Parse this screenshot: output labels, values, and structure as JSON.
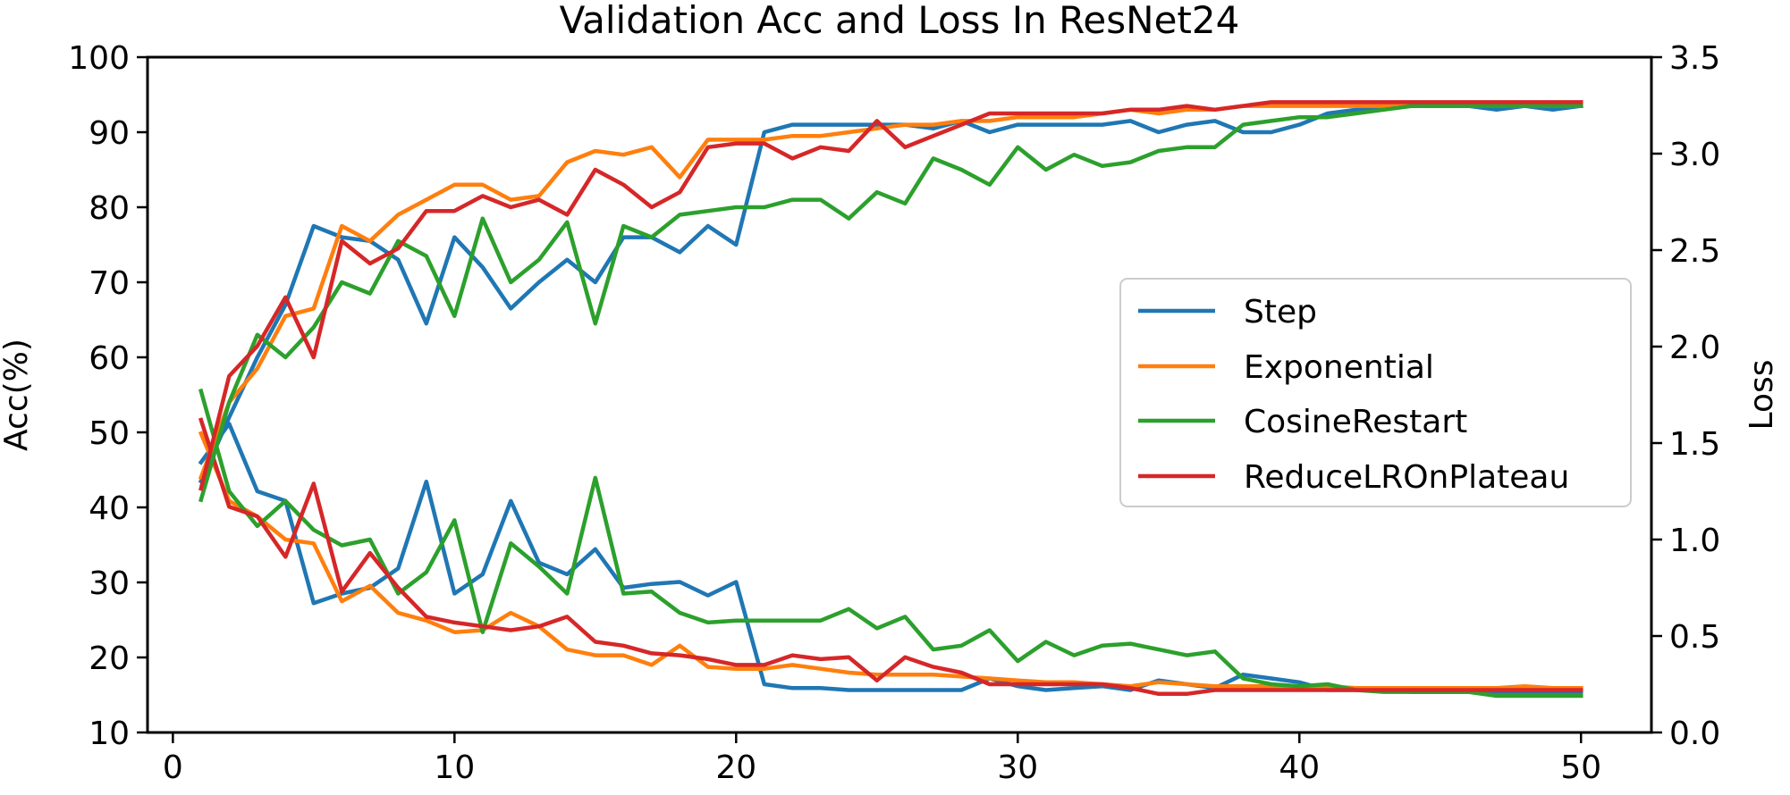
{
  "chart_data": {
    "type": "line",
    "title": "Validation Acc and Loss In ResNet24",
    "xlabel": "",
    "ylabel": "Acc(%)",
    "y2label": "Loss",
    "xlim": [
      -0.9,
      52.5
    ],
    "ylim": [
      10,
      100
    ],
    "y2lim": [
      0,
      3.5
    ],
    "x_ticks": [
      0,
      10,
      20,
      30,
      40,
      50
    ],
    "y_ticks": [
      10,
      20,
      30,
      40,
      50,
      60,
      70,
      80,
      90,
      100
    ],
    "y2_ticks": [
      "0.0",
      "0.5",
      "1.0",
      "1.5",
      "2.0",
      "2.5",
      "3.0",
      "3.5"
    ],
    "grid": false,
    "legend_position": "center-right",
    "x": [
      1,
      2,
      3,
      4,
      5,
      6,
      7,
      8,
      9,
      10,
      11,
      12,
      13,
      14,
      15,
      16,
      17,
      18,
      19,
      20,
      21,
      22,
      23,
      24,
      25,
      26,
      27,
      28,
      29,
      30,
      31,
      32,
      33,
      34,
      35,
      36,
      37,
      38,
      39,
      40,
      41,
      42,
      43,
      44,
      45,
      46,
      47,
      48,
      49,
      50
    ],
    "series": [
      {
        "name": "Step",
        "color": "#1f77b4",
        "acc": [
          43.5,
          52.0,
          60.0,
          67.0,
          77.5,
          76.0,
          75.5,
          73.0,
          64.5,
          76.0,
          72.0,
          66.5,
          70.0,
          73.0,
          70.0,
          76.0,
          76.0,
          74.0,
          77.5,
          75.0,
          90.0,
          91.0,
          91.0,
          91.0,
          91.0,
          91.0,
          90.5,
          91.5,
          90.0,
          91.0,
          91.0,
          91.0,
          91.0,
          91.5,
          90.0,
          91.0,
          91.5,
          90.0,
          90.0,
          91.0,
          92.5,
          93.0,
          93.5,
          93.5,
          93.5,
          93.5,
          93.0,
          93.5,
          93.0,
          93.5
        ],
        "loss": [
          1.4,
          1.6,
          1.25,
          1.2,
          0.67,
          0.72,
          0.75,
          0.85,
          1.3,
          0.72,
          0.82,
          1.2,
          0.88,
          0.82,
          0.95,
          0.75,
          0.77,
          0.78,
          0.71,
          0.78,
          0.25,
          0.23,
          0.23,
          0.22,
          0.22,
          0.22,
          0.22,
          0.22,
          0.28,
          0.24,
          0.22,
          0.23,
          0.24,
          0.22,
          0.27,
          0.25,
          0.23,
          0.3,
          0.28,
          0.26,
          0.22,
          0.22,
          0.22,
          0.21,
          0.21,
          0.21,
          0.21,
          0.21,
          0.21,
          0.21
        ]
      },
      {
        "name": "Exponential",
        "color": "#ff7f0e",
        "acc": [
          44.0,
          54.0,
          58.5,
          65.5,
          66.5,
          77.5,
          75.5,
          79.0,
          81.0,
          83.0,
          83.0,
          81.0,
          81.5,
          86.0,
          87.5,
          87.0,
          88.0,
          84.0,
          89.0,
          89.0,
          89.0,
          89.5,
          89.5,
          90.0,
          90.5,
          91.0,
          91.0,
          91.5,
          91.5,
          92.0,
          92.0,
          92.0,
          92.5,
          93.0,
          92.5,
          93.0,
          93.0,
          93.5,
          93.5,
          93.5,
          93.5,
          93.5,
          93.5,
          93.5,
          93.5,
          93.5,
          93.5,
          93.5,
          93.5,
          93.5
        ]
      },
      {
        "name": "CosineRestart",
        "color": "#2ca02c",
        "acc": [
          41.0,
          54.0,
          63.0,
          60.0,
          64.0,
          70.0,
          68.5,
          75.5,
          73.5,
          65.5,
          78.5,
          70.0,
          73.0,
          78.0,
          64.5,
          77.5,
          76.0,
          79.0,
          79.5,
          80.0,
          80.0,
          81.0,
          81.0,
          78.5,
          82.0,
          80.5,
          86.5,
          85.0,
          83.0,
          88.0,
          85.0,
          87.0,
          85.5,
          86.0,
          87.5,
          88.0,
          88.0,
          91.0,
          91.5,
          92.0,
          92.0,
          92.5,
          93.0,
          93.5,
          93.5,
          93.5,
          93.5,
          93.5,
          93.5,
          93.5
        ],
        "loss": [
          1.77,
          1.25,
          1.07,
          1.2,
          1.05,
          0.97,
          1.0,
          0.72,
          0.83,
          1.1,
          0.52,
          0.98,
          0.86,
          0.72,
          1.32,
          0.72,
          0.73,
          0.62,
          0.57,
          0.58,
          0.58,
          0.58,
          0.58,
          0.64,
          0.54,
          0.6,
          0.43,
          0.45,
          0.53,
          0.37,
          0.47,
          0.4,
          0.45,
          0.46,
          0.43,
          0.4,
          0.42,
          0.28,
          0.25,
          0.24,
          0.25,
          0.22,
          0.21,
          0.21,
          0.21,
          0.21,
          0.19,
          0.19,
          0.19,
          0.19
        ]
      },
      {
        "name": "ReduceLROnPlateau",
        "color": "#d62728",
        "acc": [
          42.5,
          57.5,
          61.5,
          68.0,
          60.0,
          75.5,
          72.5,
          74.5,
          79.5,
          79.5,
          81.5,
          80.0,
          81.0,
          79.0,
          85.0,
          83.0,
          80.0,
          82.0,
          88.0,
          88.5,
          88.5,
          86.5,
          88.0,
          87.5,
          91.5,
          88.0,
          89.5,
          91.0,
          92.5,
          92.5,
          92.5,
          92.5,
          92.5,
          93.0,
          93.0,
          93.5,
          93.0,
          93.5,
          94.0,
          94.0,
          94.0,
          94.0,
          94.0,
          94.0,
          94.0,
          94.0,
          94.0,
          94.0,
          94.0,
          94.0
        ]
      }
    ],
    "exponential_loss": [
      1.55,
      1.2,
      1.12,
      1.0,
      0.98,
      0.68,
      0.76,
      0.62,
      0.58,
      0.52,
      0.53,
      0.62,
      0.55,
      0.43,
      0.4,
      0.4,
      0.35,
      0.45,
      0.34,
      0.33,
      0.33,
      0.35,
      0.33,
      0.31,
      0.3,
      0.3,
      0.3,
      0.29,
      0.28,
      0.27,
      0.26,
      0.26,
      0.25,
      0.24,
      0.26,
      0.25,
      0.24,
      0.24,
      0.24,
      0.24,
      0.24,
      0.23,
      0.23,
      0.23,
      0.23,
      0.23,
      0.23,
      0.24,
      0.23,
      0.23
    ],
    "reducelr_loss": [
      1.62,
      1.17,
      1.12,
      0.91,
      1.29,
      0.73,
      0.93,
      0.75,
      0.6,
      0.57,
      0.55,
      0.53,
      0.55,
      0.6,
      0.47,
      0.45,
      0.41,
      0.4,
      0.38,
      0.35,
      0.35,
      0.4,
      0.38,
      0.39,
      0.27,
      0.39,
      0.34,
      0.31,
      0.25,
      0.25,
      0.25,
      0.25,
      0.25,
      0.23,
      0.2,
      0.2,
      0.22,
      0.22,
      0.22,
      0.22,
      0.22,
      0.22,
      0.22,
      0.22,
      0.22,
      0.22,
      0.22,
      0.22,
      0.22,
      0.22
    ]
  }
}
